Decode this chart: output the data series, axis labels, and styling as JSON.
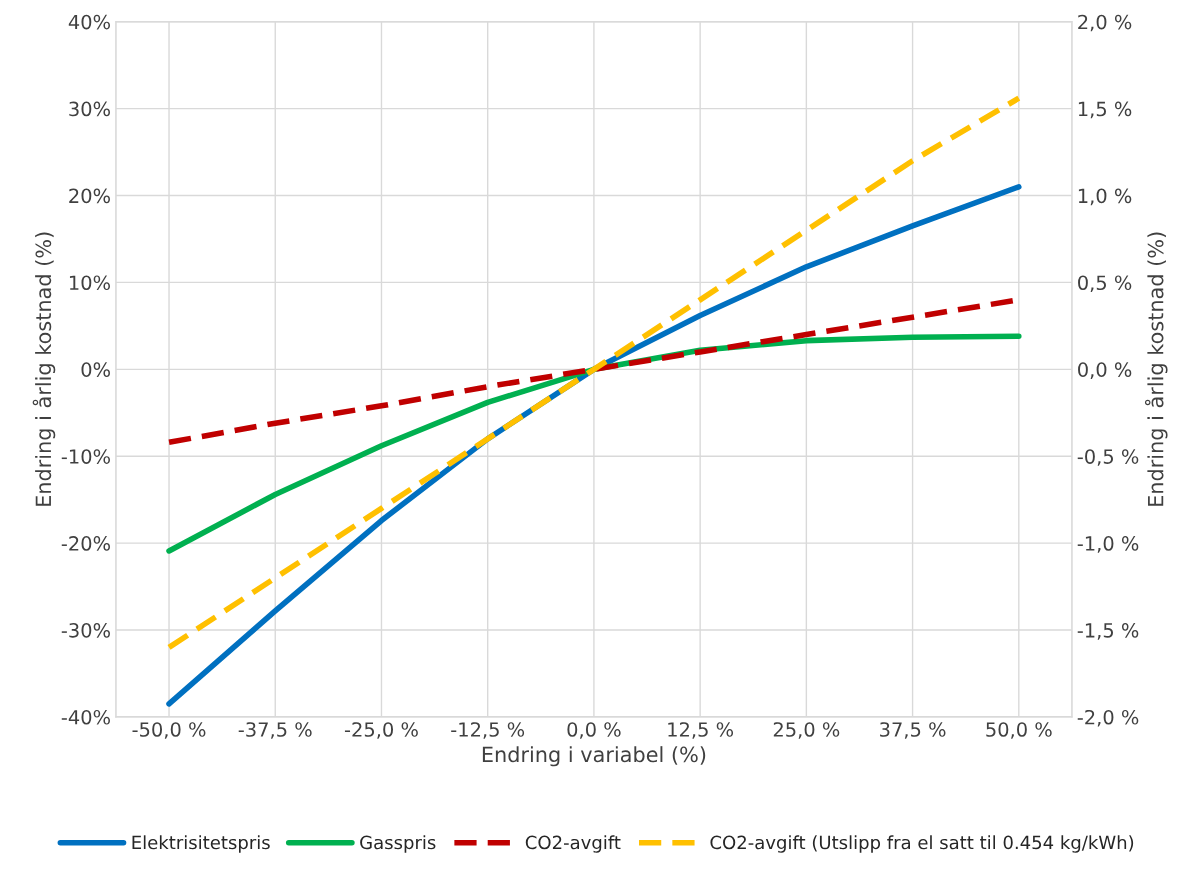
{
  "chart_data": {
    "type": "line",
    "xlabel": "Endring i variabel (%)",
    "ylabel": "Endring i årlig kostnad (%)",
    "y2label": "Endring i årlig kostnad (%)",
    "categories": [
      "-50,0 %",
      "-37,5 %",
      "-25,0 %",
      "-12,5 %",
      "0,0 %",
      "12,5 %",
      "25,0 %",
      "37,5 %",
      "50,0 %"
    ],
    "series": [
      {
        "name": "Elektrisitetspris",
        "color": "#0070c0",
        "line_style": "solid",
        "values": [
          -38.5,
          -27.8,
          -17.4,
          -8.0,
          0,
          6.2,
          11.8,
          16.5,
          21.0
        ]
      },
      {
        "name": "Gasspris",
        "color": "#00b050",
        "line_style": "solid",
        "values": [
          -20.9,
          -14.4,
          -8.8,
          -3.8,
          0,
          2.2,
          3.3,
          3.7,
          3.8
        ]
      },
      {
        "name": "CO2-avgift",
        "color": "#c00000",
        "line_style": "dashed",
        "axis": "y2",
        "values": [
          -0.42,
          -0.31,
          -0.21,
          -0.1,
          0,
          0.1,
          0.2,
          0.3,
          0.4
        ]
      },
      {
        "name": "CO2-avgift (Utslipp fra el satt til 0.454 kg/kWh)",
        "color": "#ffc000",
        "line_style": "dashed",
        "axis": "y2",
        "values": [
          -1.6,
          -1.2,
          -0.8,
          -0.4,
          0,
          0.4,
          0.8,
          1.2,
          1.56
        ]
      }
    ],
    "ylim": [
      -40,
      40
    ],
    "yticks": [
      {
        "value": -40,
        "label": "-40%"
      },
      {
        "value": -30,
        "label": "-30%"
      },
      {
        "value": -20,
        "label": "-20%"
      },
      {
        "value": -10,
        "label": "-10%"
      },
      {
        "value": 0,
        "label": "0%"
      },
      {
        "value": 10,
        "label": "10%"
      },
      {
        "value": 20,
        "label": "20%"
      },
      {
        "value": 30,
        "label": "30%"
      },
      {
        "value": 40,
        "label": "40%"
      }
    ],
    "y2lim": [
      -2,
      2
    ],
    "y2ticks": [
      {
        "value": -2,
        "label": "-2,0 %"
      },
      {
        "value": -1.5,
        "label": "-1,5 %"
      },
      {
        "value": -1,
        "label": "-1,0 %"
      },
      {
        "value": -0.5,
        "label": "-0,5 %"
      },
      {
        "value": 0,
        "label": "0,0 %"
      },
      {
        "value": 0.5,
        "label": "0,5 %"
      },
      {
        "value": 1,
        "label": "1,0 %"
      },
      {
        "value": 1.5,
        "label": "1,5 %"
      },
      {
        "value": 2,
        "label": "2,0 %"
      }
    ],
    "grid": true,
    "legend": "bottom"
  }
}
